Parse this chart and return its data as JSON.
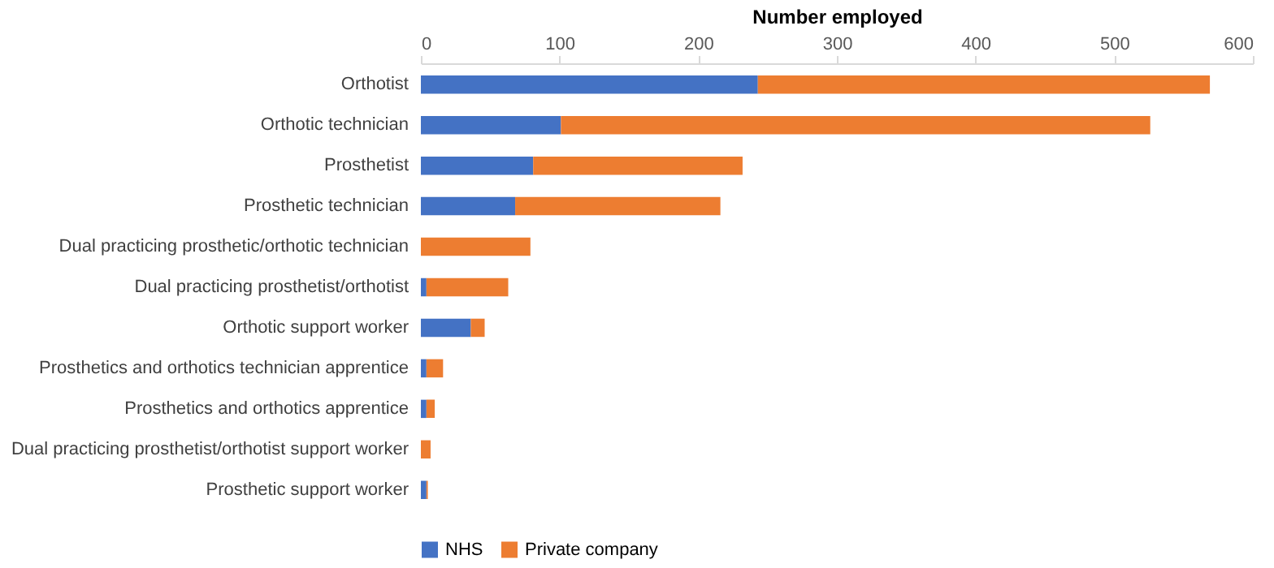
{
  "chart_data": {
    "type": "bar",
    "orientation": "horizontal",
    "stacked": true,
    "xlabel": "Number employed",
    "categories": [
      "Orthotist",
      "Orthotic technician",
      "Prosthetist",
      "Prosthetic technician",
      "Dual practicing prosthetic/orthotic technician",
      "Dual practicing prosthetist/orthotist",
      "Orthotic support worker",
      "Prosthetics and orthotics technician apprentice",
      "Prosthetics and orthotics apprentice",
      "Dual practicing prosthetist/orthotist support worker",
      "Prosthetic support worker"
    ],
    "series": [
      {
        "name": "NHS",
        "color": "#4472c4",
        "values": [
          243,
          101,
          81,
          68,
          0,
          4,
          36,
          4,
          4,
          0,
          4
        ]
      },
      {
        "name": "Private company",
        "color": "#ed7d31",
        "values": [
          326,
          425,
          151,
          148,
          79,
          59,
          10,
          12,
          6,
          7,
          1
        ]
      }
    ],
    "xlim": [
      0,
      600
    ],
    "xticks": [
      0,
      100,
      200,
      300,
      400,
      500,
      600
    ],
    "grid": false,
    "legend": "bottom"
  }
}
